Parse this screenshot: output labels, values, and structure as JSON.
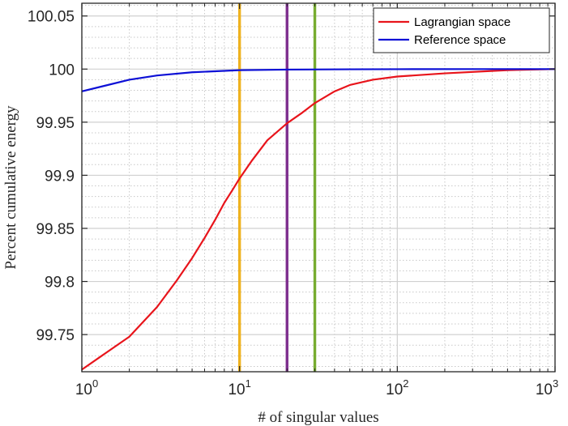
{
  "chart_data": {
    "type": "line",
    "xscale": "log",
    "xlabel": "# of singular values",
    "ylabel": "Percent cumulative energy",
    "xlim": [
      1,
      1000
    ],
    "ylim": [
      99.715,
      100.062
    ],
    "grid": true,
    "minor_grid": true,
    "legend_position": "top-right",
    "x_ticks": [
      {
        "value": 1,
        "base": "10",
        "exp": "0"
      },
      {
        "value": 10,
        "base": "10",
        "exp": "1"
      },
      {
        "value": 100,
        "base": "10",
        "exp": "2"
      },
      {
        "value": 1000,
        "base": "10",
        "exp": "3"
      }
    ],
    "y_ticks": [
      {
        "value": 99.75,
        "label": "99.75"
      },
      {
        "value": 99.8,
        "label": "99.8"
      },
      {
        "value": 99.85,
        "label": "99.85"
      },
      {
        "value": 99.9,
        "label": "99.9"
      },
      {
        "value": 99.95,
        "label": "99.95"
      },
      {
        "value": 100,
        "label": "100"
      },
      {
        "value": 100.05,
        "label": "100.05"
      }
    ],
    "series": [
      {
        "name": "Lagrangian space",
        "color": "#e8141b",
        "x": [
          1,
          2,
          3,
          4,
          5,
          6,
          7,
          8,
          9,
          10,
          12,
          15,
          20,
          25,
          30,
          40,
          50,
          70,
          100,
          200,
          500,
          1000
        ],
        "y": [
          99.717,
          99.748,
          99.776,
          99.801,
          99.822,
          99.841,
          99.858,
          99.874,
          99.886,
          99.897,
          99.914,
          99.933,
          99.949,
          99.959,
          99.968,
          99.979,
          99.985,
          99.99,
          99.993,
          99.996,
          99.999,
          100.0
        ]
      },
      {
        "name": "Reference space",
        "color": "#0d10d6",
        "x": [
          1,
          2,
          3,
          5,
          10,
          20,
          50,
          100,
          300,
          1000
        ],
        "y": [
          99.979,
          99.99,
          99.994,
          99.997,
          99.999,
          99.9995,
          99.9998,
          99.9999,
          100.0,
          100.0
        ]
      }
    ],
    "vertical_lines": [
      {
        "x": 10,
        "color": "#efb21f"
      },
      {
        "x": 20,
        "color": "#7e2f8e"
      },
      {
        "x": 30,
        "color": "#77ac30"
      }
    ]
  }
}
